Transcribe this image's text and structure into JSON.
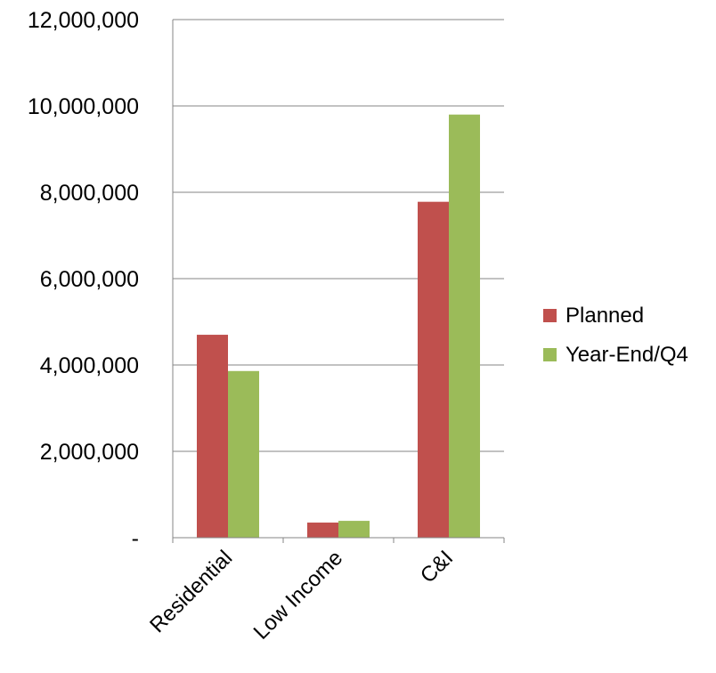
{
  "chart_data": {
    "type": "bar",
    "categories": [
      "Residential",
      "Low Income",
      "C&I"
    ],
    "series": [
      {
        "name": "Planned",
        "color": "#C0504D",
        "values": [
          4700000,
          350000,
          7780000
        ]
      },
      {
        "name": "Year-End/Q4",
        "color": "#9BBB59",
        "values": [
          3860000,
          390000,
          9800000
        ]
      }
    ],
    "ylim": [
      0,
      12000000
    ],
    "yticks": [
      0,
      2000000,
      4000000,
      6000000,
      8000000,
      10000000,
      12000000
    ],
    "ytick_labels": [
      "-",
      "2,000,000",
      "4,000,000",
      "6,000,000",
      "8,000,000",
      "10,000,000",
      "12,000,000"
    ],
    "grid": true,
    "legend_position": "right",
    "title": "",
    "xlabel": "",
    "ylabel": ""
  }
}
